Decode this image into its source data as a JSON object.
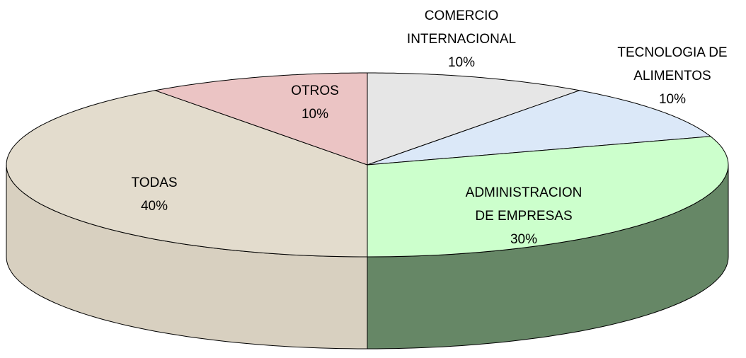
{
  "chart_data": {
    "type": "pie",
    "categories": [
      "COMERCIO\nINTERNACIONAL",
      "TECNOLOGIA DE\nALIMENTOS",
      "ADMINISTRACION\nDE EMPRESAS",
      "TODAS",
      "OTROS"
    ],
    "values": [
      10,
      10,
      30,
      40,
      10
    ],
    "value_labels": [
      "10%",
      "10%",
      "30%",
      "40%",
      "10%"
    ],
    "colors": [
      "#e6e6e6",
      "#dbe8f8",
      "#ccffcc",
      "#e3dccd",
      "#ebc4c4"
    ],
    "side_colors": [
      "#b0b0b0",
      "#a9b9cc",
      "#668766",
      "#d8d0c0",
      "#c09a9a"
    ]
  }
}
